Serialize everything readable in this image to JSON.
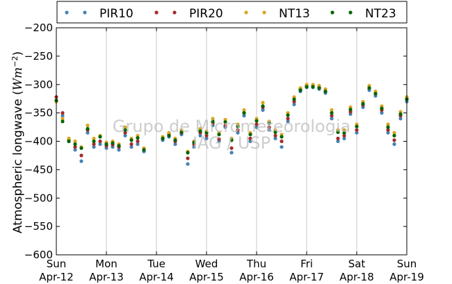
{
  "chart_data": {
    "type": "scatter",
    "ylabel_text": "Atmospheric longwave (",
    "ylabel_math": "Wm",
    "ylabel_exp": "−2",
    "ylabel_close": ")",
    "ylim": [
      -600,
      -200
    ],
    "yticks": [
      "−200",
      "−250",
      "−300",
      "−350",
      "−400",
      "−450",
      "−500",
      "−550",
      "−600"
    ],
    "xlim": [
      "2015-04-12",
      "2015-04-19"
    ],
    "xticks": [
      {
        "day": "Sun",
        "date": "Apr-12"
      },
      {
        "day": "Mon",
        "date": "Apr-13"
      },
      {
        "day": "Tue",
        "date": "Apr-14"
      },
      {
        "day": "Wed",
        "date": "Apr-15"
      },
      {
        "day": "Thu",
        "date": "Apr-16"
      },
      {
        "day": "Fri",
        "date": "Apr-17"
      },
      {
        "day": "Sat",
        "date": "Apr-18"
      },
      {
        "day": "Sun",
        "date": "Apr-19"
      }
    ],
    "grid": "vertical",
    "legend_position": "top",
    "watermark": [
      "Grupo de Micrometeorologia",
      "IAG / USP"
    ],
    "series": [
      {
        "name": "PIR10",
        "color": "#4682b4",
        "x": [
          "2015-04-12T00:00",
          "2015-04-12T03:00",
          "2015-04-12T06:00",
          "2015-04-12T09:00",
          "2015-04-12T12:00",
          "2015-04-12T15:00",
          "2015-04-12T18:00",
          "2015-04-12T21:00",
          "2015-04-13T00:00",
          "2015-04-13T03:00",
          "2015-04-13T06:00",
          "2015-04-13T09:00",
          "2015-04-13T12:00",
          "2015-04-13T15:00",
          "2015-04-13T18:00",
          "2015-04-14T03:00",
          "2015-04-14T06:00",
          "2015-04-14T09:00",
          "2015-04-14T12:00",
          "2015-04-14T15:00",
          "2015-04-14T18:00",
          "2015-04-14T21:00",
          "2015-04-15T00:00",
          "2015-04-15T03:00",
          "2015-04-15T06:00",
          "2015-04-15T09:00",
          "2015-04-15T12:00",
          "2015-04-15T15:00",
          "2015-04-15T18:00",
          "2015-04-15T21:00",
          "2015-04-16T00:00",
          "2015-04-16T03:00",
          "2015-04-16T06:00",
          "2015-04-16T09:00",
          "2015-04-16T12:00",
          "2015-04-16T15:00",
          "2015-04-16T18:00",
          "2015-04-16T21:00",
          "2015-04-17T00:00",
          "2015-04-17T03:00",
          "2015-04-17T06:00",
          "2015-04-17T09:00",
          "2015-04-17T12:00",
          "2015-04-17T15:00",
          "2015-04-17T18:00",
          "2015-04-17T21:00",
          "2015-04-18T00:00",
          "2015-04-18T03:00",
          "2015-04-18T06:00",
          "2015-04-18T09:00",
          "2015-04-18T12:00",
          "2015-04-18T15:00",
          "2015-04-18T18:00",
          "2015-04-18T21:00",
          "2015-04-19T00:00"
        ],
        "y": [
          -330,
          -355,
          -400,
          -415,
          -435,
          -385,
          -410,
          -405,
          -412,
          -410,
          -415,
          -390,
          -410,
          -405,
          -418,
          -398,
          -392,
          -405,
          -388,
          -440,
          -410,
          -390,
          -395,
          -372,
          -400,
          -375,
          -420,
          -385,
          -355,
          -400,
          -375,
          -345,
          -380,
          -395,
          -410,
          -365,
          -335,
          -312,
          -305,
          -305,
          -308,
          -315,
          -360,
          -400,
          -395,
          -352,
          -385,
          -340,
          -310,
          -320,
          -350,
          -385,
          -405,
          -360,
          -330
        ]
      },
      {
        "name": "PIR20",
        "color": "#a52a2a",
        "x": [
          "2015-04-12T00:00",
          "2015-04-12T03:00",
          "2015-04-12T06:00",
          "2015-04-12T09:00",
          "2015-04-12T12:00",
          "2015-04-12T15:00",
          "2015-04-12T18:00",
          "2015-04-12T21:00",
          "2015-04-13T00:00",
          "2015-04-13T03:00",
          "2015-04-13T06:00",
          "2015-04-13T09:00",
          "2015-04-13T12:00",
          "2015-04-13T15:00",
          "2015-04-13T18:00",
          "2015-04-14T03:00",
          "2015-04-14T06:00",
          "2015-04-14T09:00",
          "2015-04-14T12:00",
          "2015-04-14T15:00",
          "2015-04-14T18:00",
          "2015-04-14T21:00",
          "2015-04-15T00:00",
          "2015-04-15T03:00",
          "2015-04-15T06:00",
          "2015-04-15T09:00",
          "2015-04-15T12:00",
          "2015-04-15T15:00",
          "2015-04-15T18:00",
          "2015-04-15T21:00",
          "2015-04-16T00:00",
          "2015-04-16T03:00",
          "2015-04-16T06:00",
          "2015-04-16T09:00",
          "2015-04-16T12:00",
          "2015-04-16T15:00",
          "2015-04-16T18:00",
          "2015-04-16T21:00",
          "2015-04-17T00:00",
          "2015-04-17T03:00",
          "2015-04-17T06:00",
          "2015-04-17T09:00",
          "2015-04-17T12:00",
          "2015-04-17T15:00",
          "2015-04-17T18:00",
          "2015-04-17T21:00",
          "2015-04-18T00:00",
          "2015-04-18T03:00",
          "2015-04-18T06:00",
          "2015-04-18T09:00",
          "2015-04-18T12:00",
          "2015-04-18T15:00",
          "2015-04-18T18:00",
          "2015-04-18T21:00",
          "2015-04-19T00:00"
        ],
        "y": [
          -322,
          -350,
          -398,
          -410,
          -425,
          -380,
          -405,
          -400,
          -408,
          -406,
          -410,
          -385,
          -405,
          -400,
          -415,
          -395,
          -388,
          -400,
          -385,
          -430,
          -405,
          -385,
          -390,
          -368,
          -396,
          -372,
          -412,
          -380,
          -350,
          -395,
          -370,
          -340,
          -375,
          -390,
          -400,
          -360,
          -330,
          -308,
          -302,
          -302,
          -305,
          -312,
          -355,
          -395,
          -390,
          -348,
          -380,
          -336,
          -306,
          -316,
          -345,
          -380,
          -398,
          -355,
          -325
        ]
      },
      {
        "name": "NT13",
        "color": "#daa520",
        "x": [
          "2015-04-12T00:00",
          "2015-04-12T03:00",
          "2015-04-12T06:00",
          "2015-04-12T09:00",
          "2015-04-12T12:00",
          "2015-04-12T15:00",
          "2015-04-12T18:00",
          "2015-04-12T21:00",
          "2015-04-13T00:00",
          "2015-04-13T03:00",
          "2015-04-13T06:00",
          "2015-04-13T09:00",
          "2015-04-13T12:00",
          "2015-04-13T15:00",
          "2015-04-13T18:00",
          "2015-04-14T03:00",
          "2015-04-14T06:00",
          "2015-04-14T09:00",
          "2015-04-14T12:00",
          "2015-04-14T15:00",
          "2015-04-14T18:00",
          "2015-04-14T21:00",
          "2015-04-15T00:00",
          "2015-04-15T03:00",
          "2015-04-15T06:00",
          "2015-04-15T09:00",
          "2015-04-15T12:00",
          "2015-04-15T15:00",
          "2015-04-15T18:00",
          "2015-04-15T21:00",
          "2015-04-16T00:00",
          "2015-04-16T03:00",
          "2015-04-16T06:00",
          "2015-04-16T09:00",
          "2015-04-16T12:00",
          "2015-04-16T15:00",
          "2015-04-16T18:00",
          "2015-04-16T21:00",
          "2015-04-17T00:00",
          "2015-04-17T03:00",
          "2015-04-17T06:00",
          "2015-04-17T09:00",
          "2015-04-17T12:00",
          "2015-04-17T15:00",
          "2015-04-17T18:00",
          "2015-04-17T21:00",
          "2015-04-18T00:00",
          "2015-04-18T03:00",
          "2015-04-18T06:00",
          "2015-04-18T09:00",
          "2015-04-18T12:00",
          "2015-04-18T15:00",
          "2015-04-18T18:00",
          "2015-04-18T21:00",
          "2015-04-19T00:00"
        ],
        "y": [
          -330,
          -360,
          -395,
          -400,
          -410,
          -372,
          -395,
          -390,
          -402,
          -400,
          -405,
          -375,
          -395,
          -390,
          -412,
          -392,
          -385,
          -395,
          -380,
          -418,
          -400,
          -378,
          -382,
          -360,
          -385,
          -362,
          -395,
          -370,
          -345,
          -385,
          -360,
          -332,
          -365,
          -380,
          -388,
          -350,
          -322,
          -306,
          -300,
          -300,
          -302,
          -308,
          -345,
          -380,
          -380,
          -340,
          -370,
          -330,
          -302,
          -312,
          -338,
          -370,
          -385,
          -348,
          -322
        ]
      },
      {
        "name": "NT23",
        "color": "#006400",
        "x": [
          "2015-04-12T00:00",
          "2015-04-12T03:00",
          "2015-04-12T06:00",
          "2015-04-12T09:00",
          "2015-04-12T12:00",
          "2015-04-12T15:00",
          "2015-04-12T18:00",
          "2015-04-12T21:00",
          "2015-04-13T00:00",
          "2015-04-13T03:00",
          "2015-04-13T06:00",
          "2015-04-13T09:00",
          "2015-04-13T12:00",
          "2015-04-13T15:00",
          "2015-04-13T18:00",
          "2015-04-14T03:00",
          "2015-04-14T06:00",
          "2015-04-14T09:00",
          "2015-04-14T12:00",
          "2015-04-14T15:00",
          "2015-04-14T18:00",
          "2015-04-14T21:00",
          "2015-04-15T00:00",
          "2015-04-15T03:00",
          "2015-04-15T06:00",
          "2015-04-15T09:00",
          "2015-04-15T12:00",
          "2015-04-15T15:00",
          "2015-04-15T18:00",
          "2015-04-15T21:00",
          "2015-04-16T00:00",
          "2015-04-16T03:00",
          "2015-04-16T06:00",
          "2015-04-16T09:00",
          "2015-04-16T12:00",
          "2015-04-16T15:00",
          "2015-04-16T18:00",
          "2015-04-16T21:00",
          "2015-04-17T00:00",
          "2015-04-17T03:00",
          "2015-04-17T06:00",
          "2015-04-17T09:00",
          "2015-04-17T12:00",
          "2015-04-17T15:00",
          "2015-04-17T18:00",
          "2015-04-17T21:00",
          "2015-04-18T00:00",
          "2015-04-18T03:00",
          "2015-04-18T06:00",
          "2015-04-18T09:00",
          "2015-04-18T12:00",
          "2015-04-18T15:00",
          "2015-04-18T18:00",
          "2015-04-18T21:00",
          "2015-04-19T00:00"
        ],
        "y": [
          -328,
          -365,
          -400,
          -405,
          -412,
          -378,
          -400,
          -392,
          -405,
          -403,
          -408,
          -380,
          -398,
          -394,
          -415,
          -395,
          -390,
          -398,
          -384,
          -420,
          -402,
          -382,
          -385,
          -365,
          -388,
          -366,
          -398,
          -374,
          -350,
          -388,
          -364,
          -338,
          -368,
          -384,
          -392,
          -354,
          -326,
          -310,
          -304,
          -304,
          -306,
          -312,
          -350,
          -384,
          -385,
          -344,
          -374,
          -334,
          -306,
          -316,
          -342,
          -375,
          -390,
          -352,
          -326
        ]
      }
    ]
  }
}
